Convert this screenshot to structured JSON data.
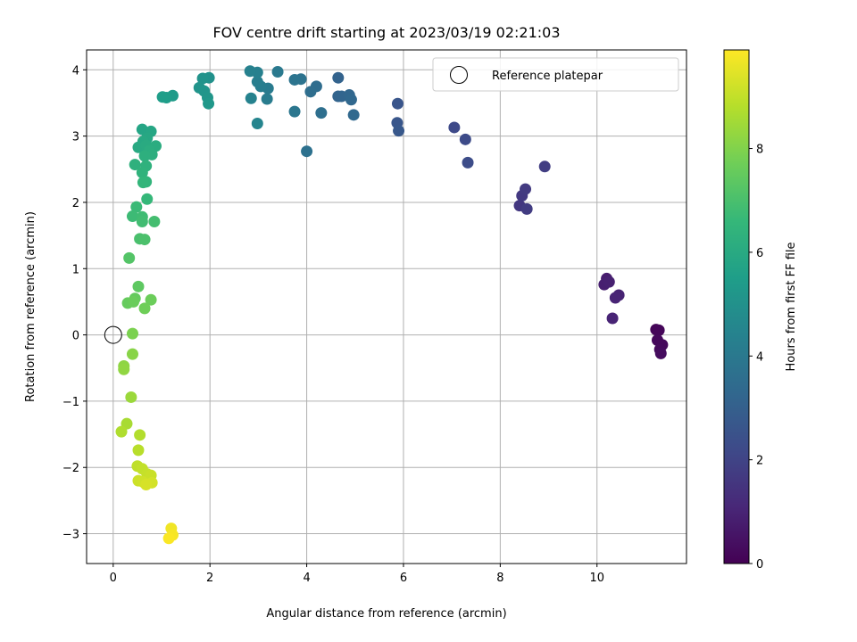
{
  "chart_data": {
    "type": "scatter",
    "title": "FOV centre drift starting at 2023/03/19 02:21:03",
    "xlabel": "Angular distance from reference (arcmin)",
    "ylabel": "Rotation from reference (arcmin)",
    "xlim": [
      -0.55,
      11.85
    ],
    "ylim": [
      -3.45,
      4.3
    ],
    "xticks": [
      0,
      2,
      4,
      6,
      8,
      10
    ],
    "yticks": [
      -3,
      -2,
      -1,
      0,
      1,
      2,
      3,
      4
    ],
    "xtick_labels": [
      "0",
      "2",
      "4",
      "6",
      "8",
      "10"
    ],
    "ytick_labels": [
      "−3",
      "−2",
      "−1",
      "0",
      "1",
      "2",
      "3",
      "4"
    ],
    "grid": true,
    "legend": {
      "position": "top-right",
      "entries": [
        {
          "label": "Reference platepar",
          "marker": "open-circle",
          "x": 0,
          "y": 0
        }
      ]
    },
    "colorbar": {
      "label": "Hours from first FF file",
      "colormap": "viridis",
      "range": [
        0,
        9.9
      ],
      "ticks": [
        0,
        2,
        4,
        6,
        8
      ],
      "tick_labels": [
        "0",
        "2",
        "4",
        "6",
        "8"
      ]
    },
    "colormap_stops": [
      "#440154",
      "#482878",
      "#3e4a89",
      "#31688e",
      "#26828e",
      "#1f9e89",
      "#35b779",
      "#6ece58",
      "#b5de2b",
      "#fde725"
    ],
    "points": [
      {
        "x": 11.22,
        "y": 0.08,
        "t": 0.1
      },
      {
        "x": 11.28,
        "y": 0.07,
        "t": 0.15
      },
      {
        "x": 11.25,
        "y": -0.08,
        "t": 0.2
      },
      {
        "x": 11.35,
        "y": -0.15,
        "t": 0.22
      },
      {
        "x": 11.3,
        "y": -0.22,
        "t": 0.25
      },
      {
        "x": 11.32,
        "y": -0.28,
        "t": 0.3
      },
      {
        "x": 10.2,
        "y": 0.85,
        "t": 0.8
      },
      {
        "x": 10.15,
        "y": 0.76,
        "t": 0.85
      },
      {
        "x": 10.25,
        "y": 0.8,
        "t": 0.9
      },
      {
        "x": 10.45,
        "y": 0.6,
        "t": 0.95
      },
      {
        "x": 10.38,
        "y": 0.56,
        "t": 1.0
      },
      {
        "x": 10.32,
        "y": 0.25,
        "t": 1.0
      },
      {
        "x": 8.4,
        "y": 1.95,
        "t": 1.6
      },
      {
        "x": 8.45,
        "y": 2.1,
        "t": 1.65
      },
      {
        "x": 8.52,
        "y": 2.2,
        "t": 1.7
      },
      {
        "x": 8.55,
        "y": 1.9,
        "t": 1.75
      },
      {
        "x": 8.92,
        "y": 2.54,
        "t": 1.8
      },
      {
        "x": 7.05,
        "y": 3.13,
        "t": 2.2
      },
      {
        "x": 7.28,
        "y": 2.95,
        "t": 2.25
      },
      {
        "x": 7.33,
        "y": 2.6,
        "t": 2.3
      },
      {
        "x": 5.88,
        "y": 3.49,
        "t": 2.6
      },
      {
        "x": 5.87,
        "y": 3.2,
        "t": 2.65
      },
      {
        "x": 5.9,
        "y": 3.08,
        "t": 2.7
      },
      {
        "x": 4.65,
        "y": 3.88,
        "t": 3.1
      },
      {
        "x": 4.65,
        "y": 3.6,
        "t": 3.15
      },
      {
        "x": 4.72,
        "y": 3.6,
        "t": 3.2
      },
      {
        "x": 4.88,
        "y": 3.62,
        "t": 3.25
      },
      {
        "x": 4.92,
        "y": 3.55,
        "t": 3.3
      },
      {
        "x": 4.97,
        "y": 3.32,
        "t": 3.35
      },
      {
        "x": 4.2,
        "y": 3.75,
        "t": 3.5
      },
      {
        "x": 4.08,
        "y": 3.67,
        "t": 3.55
      },
      {
        "x": 4.3,
        "y": 3.35,
        "t": 3.6
      },
      {
        "x": 4.0,
        "y": 2.77,
        "t": 3.7
      },
      {
        "x": 3.88,
        "y": 3.86,
        "t": 3.75
      },
      {
        "x": 3.75,
        "y": 3.85,
        "t": 3.8
      },
      {
        "x": 3.75,
        "y": 3.37,
        "t": 3.9
      },
      {
        "x": 3.4,
        "y": 3.97,
        "t": 4.0
      },
      {
        "x": 3.2,
        "y": 3.72,
        "t": 4.1
      },
      {
        "x": 3.18,
        "y": 3.56,
        "t": 4.15
      },
      {
        "x": 3.05,
        "y": 3.75,
        "t": 4.2
      },
      {
        "x": 2.98,
        "y": 3.82,
        "t": 4.25
      },
      {
        "x": 2.98,
        "y": 3.96,
        "t": 4.3
      },
      {
        "x": 2.83,
        "y": 3.98,
        "t": 4.35
      },
      {
        "x": 2.85,
        "y": 3.57,
        "t": 4.4
      },
      {
        "x": 2.98,
        "y": 3.19,
        "t": 4.5
      },
      {
        "x": 1.98,
        "y": 3.88,
        "t": 5.0
      },
      {
        "x": 1.85,
        "y": 3.87,
        "t": 5.05
      },
      {
        "x": 1.78,
        "y": 3.73,
        "t": 5.1
      },
      {
        "x": 1.88,
        "y": 3.68,
        "t": 5.15
      },
      {
        "x": 1.95,
        "y": 3.58,
        "t": 5.2
      },
      {
        "x": 1.97,
        "y": 3.49,
        "t": 5.25
      },
      {
        "x": 1.23,
        "y": 3.61,
        "t": 5.4
      },
      {
        "x": 1.1,
        "y": 3.58,
        "t": 5.45
      },
      {
        "x": 1.02,
        "y": 3.59,
        "t": 5.5
      },
      {
        "x": 0.6,
        "y": 3.1,
        "t": 5.8
      },
      {
        "x": 0.78,
        "y": 3.07,
        "t": 5.85
      },
      {
        "x": 0.7,
        "y": 2.97,
        "t": 5.9
      },
      {
        "x": 0.62,
        "y": 2.92,
        "t": 5.95
      },
      {
        "x": 0.52,
        "y": 2.83,
        "t": 6.0
      },
      {
        "x": 0.68,
        "y": 2.86,
        "t": 6.05
      },
      {
        "x": 0.88,
        "y": 2.85,
        "t": 6.1
      },
      {
        "x": 0.75,
        "y": 2.78,
        "t": 6.15
      },
      {
        "x": 0.8,
        "y": 2.72,
        "t": 6.2
      },
      {
        "x": 0.65,
        "y": 2.7,
        "t": 6.25
      },
      {
        "x": 0.45,
        "y": 2.57,
        "t": 6.3
      },
      {
        "x": 0.68,
        "y": 2.55,
        "t": 6.35
      },
      {
        "x": 0.6,
        "y": 2.45,
        "t": 6.4
      },
      {
        "x": 0.68,
        "y": 2.31,
        "t": 6.45
      },
      {
        "x": 0.62,
        "y": 2.3,
        "t": 6.5
      },
      {
        "x": 0.7,
        "y": 2.05,
        "t": 6.6
      },
      {
        "x": 0.48,
        "y": 1.93,
        "t": 6.7
      },
      {
        "x": 0.4,
        "y": 1.79,
        "t": 6.75
      },
      {
        "x": 0.6,
        "y": 1.78,
        "t": 6.8
      },
      {
        "x": 0.6,
        "y": 1.71,
        "t": 6.85
      },
      {
        "x": 0.85,
        "y": 1.71,
        "t": 6.9
      },
      {
        "x": 0.55,
        "y": 1.45,
        "t": 7.0
      },
      {
        "x": 0.65,
        "y": 1.44,
        "t": 7.05
      },
      {
        "x": 0.33,
        "y": 1.16,
        "t": 7.2
      },
      {
        "x": 0.52,
        "y": 0.73,
        "t": 7.4
      },
      {
        "x": 0.45,
        "y": 0.55,
        "t": 7.5
      },
      {
        "x": 0.3,
        "y": 0.48,
        "t": 7.55
      },
      {
        "x": 0.42,
        "y": 0.5,
        "t": 7.6
      },
      {
        "x": 0.78,
        "y": 0.53,
        "t": 7.65
      },
      {
        "x": 0.65,
        "y": 0.4,
        "t": 7.7
      },
      {
        "x": 0.4,
        "y": 0.02,
        "t": 7.9
      },
      {
        "x": 0.4,
        "y": -0.29,
        "t": 8.1
      },
      {
        "x": 0.22,
        "y": -0.47,
        "t": 8.2
      },
      {
        "x": 0.22,
        "y": -0.52,
        "t": 8.25
      },
      {
        "x": 0.37,
        "y": -0.94,
        "t": 8.4
      },
      {
        "x": 0.28,
        "y": -1.34,
        "t": 8.6
      },
      {
        "x": 0.17,
        "y": -1.46,
        "t": 8.7
      },
      {
        "x": 0.55,
        "y": -1.51,
        "t": 8.75
      },
      {
        "x": 0.52,
        "y": -1.74,
        "t": 8.85
      },
      {
        "x": 0.5,
        "y": -1.98,
        "t": 8.95
      },
      {
        "x": 0.6,
        "y": -2.02,
        "t": 9.0
      },
      {
        "x": 0.7,
        "y": -2.1,
        "t": 9.05
      },
      {
        "x": 0.78,
        "y": -2.12,
        "t": 9.1
      },
      {
        "x": 0.52,
        "y": -2.2,
        "t": 9.15
      },
      {
        "x": 0.62,
        "y": -2.22,
        "t": 9.2
      },
      {
        "x": 0.8,
        "y": -2.23,
        "t": 9.25
      },
      {
        "x": 0.68,
        "y": -2.26,
        "t": 9.3
      },
      {
        "x": 1.2,
        "y": -2.92,
        "t": 9.7
      },
      {
        "x": 1.23,
        "y": -3.02,
        "t": 9.8
      },
      {
        "x": 1.15,
        "y": -3.07,
        "t": 9.85
      }
    ]
  }
}
